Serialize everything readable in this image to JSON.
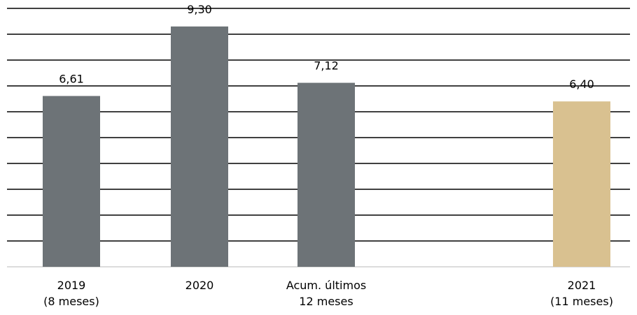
{
  "chart_data": {
    "type": "bar",
    "categories": [
      "2019\n(8 meses)",
      "2020",
      "Acum. últimos\n12 meses",
      "2021\n(11 meses)"
    ],
    "values": [
      6.61,
      9.3,
      7.12,
      6.4
    ],
    "value_labels": [
      "6,61",
      "9,30",
      "7,12",
      "6,40"
    ],
    "bar_colors": [
      "#6d7377",
      "#6d7377",
      "#6d7377",
      "#d9c190"
    ],
    "ylim": [
      0,
      10
    ],
    "grid": true,
    "legend": "none",
    "title": "",
    "xlabel": "",
    "ylabel": ""
  }
}
